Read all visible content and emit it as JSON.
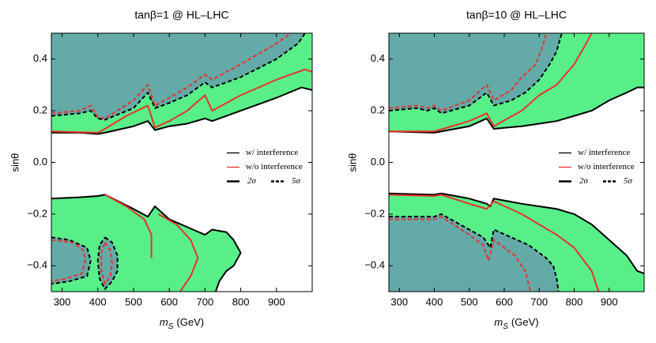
{
  "chart_data": [
    {
      "type": "contour",
      "title": "tanβ=1 @ HL–LHC",
      "x_label": {
        "symbol": "m",
        "subscript": "S",
        "unit": "(GeV)"
      },
      "y_label": "sinθ",
      "xlim": [
        270,
        1000
      ],
      "ylim": [
        -0.5,
        0.5
      ],
      "xticks": [
        300,
        400,
        500,
        600,
        700,
        800,
        900
      ],
      "yticks": [
        {
          "value": -0.4,
          "label": "−0.4"
        },
        {
          "value": -0.2,
          "label": "−0.2"
        },
        {
          "value": 0,
          "label": "0.0"
        },
        0.2,
        0.4
      ],
      "legend": {
        "loc": "right",
        "items": [
          {
            "label": "w/  interference",
            "color": "#000000",
            "dash": false
          },
          {
            "label": "w/o interference",
            "color": "#e8322a",
            "dash": false
          },
          {
            "label": "2σ",
            "color": "#000000",
            "dash": false
          },
          {
            "label": "5σ",
            "color": "#000000",
            "dash": true
          }
        ]
      },
      "series": [
        {
          "color": "#000000",
          "dash": false,
          "fill": "#58ef88",
          "fill_to": "top",
          "x": [
            270,
            350,
            400,
            420,
            500,
            540,
            560,
            600,
            650,
            700,
            720,
            800,
            900,
            970,
            1000
          ],
          "values": [
            0.115,
            0.115,
            0.11,
            0.115,
            0.14,
            0.16,
            0.125,
            0.14,
            0.15,
            0.17,
            0.16,
            0.2,
            0.25,
            0.29,
            0.28
          ]
        },
        {
          "color": "#000000",
          "dash": false,
          "fill": "#58ef88",
          "fill_to": "bottom",
          "x": [
            270,
            350,
            400,
            420,
            500,
            540,
            560,
            600,
            650,
            700,
            720,
            760,
            780,
            800,
            780,
            760,
            740,
            730
          ],
          "values": [
            -0.14,
            -0.135,
            -0.13,
            -0.125,
            -0.18,
            -0.21,
            -0.17,
            -0.22,
            -0.25,
            -0.28,
            -0.26,
            -0.27,
            -0.3,
            -0.35,
            -0.4,
            -0.42,
            -0.46,
            -0.5
          ]
        },
        {
          "color": "#000000",
          "dash": true,
          "fill": "#63aaa9",
          "fill_to": "top",
          "x": [
            270,
            350,
            380,
            400,
            420,
            500,
            540,
            560,
            600,
            650,
            700,
            720,
            800,
            900,
            960,
            980
          ],
          "values": [
            0.18,
            0.19,
            0.2,
            0.17,
            0.165,
            0.21,
            0.27,
            0.21,
            0.23,
            0.26,
            0.31,
            0.29,
            0.33,
            0.4,
            0.46,
            0.5
          ]
        },
        {
          "color": "#000000",
          "dash": true,
          "fill": "#63aaa9",
          "fill_to": "self",
          "x": [
            270,
            320,
            370,
            380,
            370,
            320,
            270
          ],
          "values": [
            -0.29,
            -0.3,
            -0.33,
            -0.38,
            -0.44,
            -0.46,
            -0.47
          ]
        },
        {
          "color": "#000000",
          "dash": true,
          "fill": "#63aaa9",
          "fill_to": "self",
          "x": [
            420,
            440,
            455,
            455,
            440,
            420,
            405,
            400,
            405,
            420
          ],
          "values": [
            -0.29,
            -0.31,
            -0.36,
            -0.42,
            -0.46,
            -0.49,
            -0.45,
            -0.38,
            -0.32,
            -0.29
          ]
        },
        {
          "color": "#e8322a",
          "dash": false,
          "x": [
            270,
            400,
            420,
            480,
            540,
            560,
            600,
            650,
            700,
            720,
            800,
            900,
            980,
            1000
          ],
          "values": [
            0.12,
            0.115,
            0.13,
            0.18,
            0.22,
            0.135,
            0.16,
            0.2,
            0.26,
            0.2,
            0.26,
            0.32,
            0.36,
            0.35
          ]
        },
        {
          "color": "#e8322a",
          "dash": false,
          "x": [
            420,
            480,
            530,
            550,
            550,
            null,
            570,
            620,
            660,
            680,
            660,
            630
          ],
          "values": [
            -0.125,
            -0.17,
            -0.22,
            -0.28,
            -0.37,
            null,
            -0.2,
            -0.24,
            -0.3,
            -0.37,
            -0.44,
            -0.5
          ]
        },
        {
          "color": "#e8322a",
          "dash": true,
          "x": [
            270,
            350,
            380,
            400,
            420,
            500,
            540,
            560,
            600,
            650,
            700,
            720,
            800,
            900,
            940
          ],
          "values": [
            0.19,
            0.2,
            0.22,
            0.175,
            0.17,
            0.24,
            0.3,
            0.22,
            0.25,
            0.29,
            0.34,
            0.32,
            0.38,
            0.46,
            0.5
          ]
        },
        {
          "color": "#e8322a",
          "dash": true,
          "x": [
            270,
            330,
            360,
            365,
            355,
            310,
            270,
            null,
            420,
            435,
            440,
            435,
            420,
            410,
            410,
            420
          ],
          "values": [
            -0.3,
            -0.31,
            -0.34,
            -0.38,
            -0.43,
            -0.45,
            -0.46,
            null,
            -0.31,
            -0.34,
            -0.39,
            -0.44,
            -0.47,
            -0.42,
            -0.35,
            -0.31
          ]
        }
      ]
    },
    {
      "type": "contour",
      "title": "tanβ=10 @ HL–LHC",
      "x_label": {
        "symbol": "m",
        "subscript": "S",
        "unit": "(GeV)"
      },
      "y_label": "sinθ",
      "xlim": [
        270,
        1000
      ],
      "ylim": [
        -0.5,
        0.5
      ],
      "xticks": [
        300,
        400,
        500,
        600,
        700,
        800,
        900
      ],
      "yticks": [
        {
          "value": -0.4,
          "label": "−0.4"
        },
        {
          "value": -0.2,
          "label": "−0.2"
        },
        {
          "value": 0,
          "label": "0.0"
        },
        0.2,
        0.4
      ],
      "legend": {
        "loc": "right",
        "items": [
          {
            "label": "w/  interference",
            "color": "#000000",
            "dash": false
          },
          {
            "label": "w/o interference",
            "color": "#e8322a",
            "dash": false
          },
          {
            "label": "2σ",
            "color": "#000000",
            "dash": false
          },
          {
            "label": "5σ",
            "color": "#000000",
            "dash": true
          }
        ]
      },
      "series": [
        {
          "color": "#000000",
          "dash": false,
          "fill": "#58ef88",
          "fill_to": "top",
          "x": [
            270,
            400,
            420,
            500,
            550,
            570,
            650,
            700,
            750,
            800,
            850,
            900,
            950,
            980,
            1000
          ],
          "values": [
            0.12,
            0.115,
            0.12,
            0.14,
            0.17,
            0.13,
            0.14,
            0.15,
            0.16,
            0.18,
            0.2,
            0.24,
            0.27,
            0.29,
            0.29
          ]
        },
        {
          "color": "#000000",
          "dash": false,
          "fill": "#58ef88",
          "fill_to": "bottom",
          "x": [
            270,
            400,
            420,
            500,
            550,
            560,
            570,
            650,
            700,
            750,
            800,
            850,
            900,
            950,
            980,
            1000
          ],
          "values": [
            -0.12,
            -0.125,
            -0.12,
            -0.14,
            -0.16,
            -0.17,
            -0.14,
            -0.16,
            -0.17,
            -0.18,
            -0.2,
            -0.24,
            -0.3,
            -0.36,
            -0.42,
            -0.43
          ]
        },
        {
          "color": "#000000",
          "dash": true,
          "fill": "#63aaa9",
          "fill_to": "top",
          "x": [
            270,
            350,
            380,
            400,
            420,
            500,
            550,
            570,
            620,
            660,
            700,
            730,
            750,
            760,
            765
          ],
          "values": [
            0.2,
            0.21,
            0.2,
            0.21,
            0.19,
            0.22,
            0.27,
            0.22,
            0.24,
            0.27,
            0.32,
            0.38,
            0.43,
            0.48,
            0.5
          ]
        },
        {
          "color": "#000000",
          "dash": true,
          "fill": "#63aaa9",
          "fill_to": "bottom",
          "x": [
            270,
            400,
            420,
            500,
            540,
            560,
            570,
            620,
            670,
            700,
            720,
            740,
            750,
            755
          ],
          "values": [
            -0.21,
            -0.21,
            -0.2,
            -0.26,
            -0.29,
            -0.33,
            -0.26,
            -0.29,
            -0.32,
            -0.35,
            -0.37,
            -0.4,
            -0.45,
            -0.5
          ]
        },
        {
          "color": "#e8322a",
          "dash": false,
          "x": [
            270,
            400,
            500,
            550,
            570,
            650,
            700,
            750,
            800,
            830,
            850
          ],
          "values": [
            0.12,
            0.12,
            0.16,
            0.19,
            0.14,
            0.2,
            0.26,
            0.3,
            0.38,
            0.45,
            0.5
          ]
        },
        {
          "color": "#e8322a",
          "dash": false,
          "x": [
            270,
            400,
            420,
            500,
            550,
            570,
            650,
            700,
            750,
            800,
            850,
            870
          ],
          "values": [
            -0.125,
            -0.13,
            -0.125,
            -0.16,
            -0.18,
            -0.15,
            -0.2,
            -0.24,
            -0.28,
            -0.33,
            -0.42,
            -0.5
          ]
        },
        {
          "color": "#e8322a",
          "dash": true,
          "x": [
            270,
            350,
            380,
            400,
            420,
            500,
            550,
            570,
            620,
            650,
            690,
            710,
            720
          ],
          "values": [
            0.21,
            0.22,
            0.21,
            0.22,
            0.2,
            0.24,
            0.3,
            0.24,
            0.28,
            0.33,
            0.38,
            0.45,
            0.5
          ]
        },
        {
          "color": "#e8322a",
          "dash": true,
          "x": [
            270,
            400,
            420,
            500,
            540,
            555,
            570,
            600,
            630,
            660,
            675
          ],
          "values": [
            -0.22,
            -0.22,
            -0.21,
            -0.28,
            -0.32,
            -0.38,
            -0.3,
            -0.33,
            -0.36,
            -0.42,
            -0.5
          ]
        }
      ]
    }
  ]
}
